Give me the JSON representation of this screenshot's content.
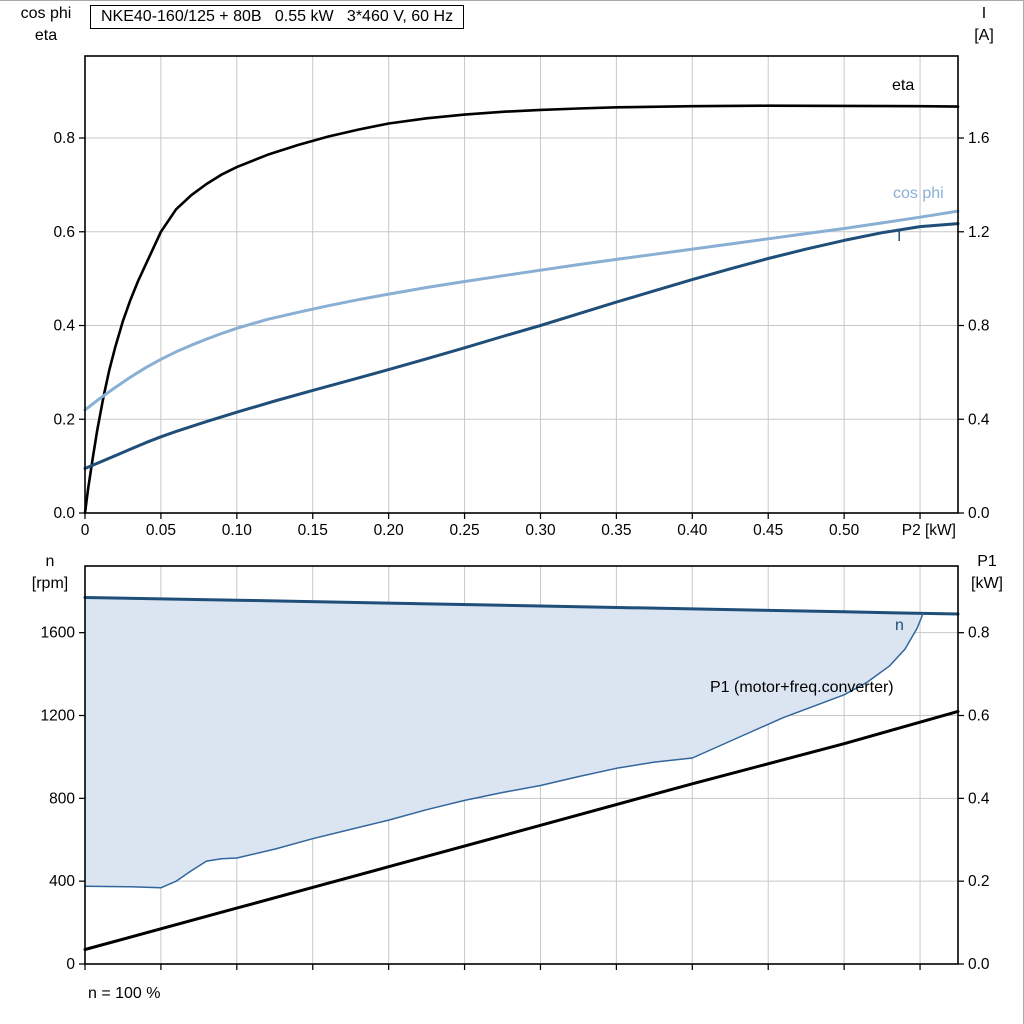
{
  "chart_data": [
    {
      "id": "upper",
      "type": "line",
      "title": "NKE40-160/125 + 80B   0.55 kW   3*460 V, 60 Hz",
      "xlabel": "P2 [kW]",
      "ylabel_left": [
        "cos phi",
        "eta"
      ],
      "ylabel_right": [
        "I",
        "[A]"
      ],
      "xlim": [
        0,
        0.575
      ],
      "ylim_left": [
        0,
        0.975
      ],
      "ylim_right": [
        0,
        1.95
      ],
      "grid_on": true,
      "grid_color": "#c8c8c8",
      "show_x_tick_labels": true,
      "xticks": [
        {
          "v": 0,
          "label": "0"
        },
        {
          "v": 0.05,
          "label": "0.05"
        },
        {
          "v": 0.1,
          "label": "0.10"
        },
        {
          "v": 0.15,
          "label": "0.15"
        },
        {
          "v": 0.2,
          "label": "0.20"
        },
        {
          "v": 0.25,
          "label": "0.25"
        },
        {
          "v": 0.3,
          "label": "0.30"
        },
        {
          "v": 0.35,
          "label": "0.35"
        },
        {
          "v": 0.4,
          "label": "0.40"
        },
        {
          "v": 0.45,
          "label": "0.45"
        },
        {
          "v": 0.5,
          "label": "0.50"
        },
        {
          "v": 0.55,
          "label": ""
        }
      ],
      "yticks_left": [
        {
          "v": 0,
          "label": "0.0"
        },
        {
          "v": 0.2,
          "label": "0.2"
        },
        {
          "v": 0.4,
          "label": "0.4"
        },
        {
          "v": 0.6,
          "label": "0.6"
        },
        {
          "v": 0.8,
          "label": "0.8"
        }
      ],
      "yticks_right": [
        {
          "v": 0,
          "label": "0.0"
        },
        {
          "v": 0.4,
          "label": "0.4"
        },
        {
          "v": 0.8,
          "label": "0.8"
        },
        {
          "v": 1.2,
          "label": "1.2"
        },
        {
          "v": 1.6,
          "label": "1.6"
        }
      ],
      "series": [
        {
          "name": "eta",
          "label": "eta",
          "axis": "left",
          "color": "#000000",
          "width": 2.6,
          "points": [
            [
              0,
              0
            ],
            [
              0.002,
              0.05
            ],
            [
              0.005,
              0.115
            ],
            [
              0.008,
              0.175
            ],
            [
              0.012,
              0.245
            ],
            [
              0.016,
              0.305
            ],
            [
              0.02,
              0.355
            ],
            [
              0.025,
              0.41
            ],
            [
              0.03,
              0.455
            ],
            [
              0.035,
              0.495
            ],
            [
              0.04,
              0.53
            ],
            [
              0.045,
              0.565
            ],
            [
              0.05,
              0.6
            ],
            [
              0.06,
              0.648
            ],
            [
              0.07,
              0.678
            ],
            [
              0.08,
              0.702
            ],
            [
              0.09,
              0.722
            ],
            [
              0.1,
              0.738
            ],
            [
              0.12,
              0.764
            ],
            [
              0.14,
              0.785
            ],
            [
              0.16,
              0.803
            ],
            [
              0.18,
              0.818
            ],
            [
              0.2,
              0.831
            ],
            [
              0.225,
              0.842
            ],
            [
              0.25,
              0.85
            ],
            [
              0.275,
              0.856
            ],
            [
              0.3,
              0.86
            ],
            [
              0.325,
              0.863
            ],
            [
              0.35,
              0.8655
            ],
            [
              0.4,
              0.868
            ],
            [
              0.45,
              0.869
            ],
            [
              0.5,
              0.8685
            ],
            [
              0.55,
              0.868
            ],
            [
              0.575,
              0.867
            ]
          ]
        },
        {
          "name": "cosphi",
          "label": "cos phi",
          "axis": "left",
          "color": "#8aafd4",
          "width": 3,
          "points": [
            [
              0,
              0.22
            ],
            [
              0.01,
              0.245
            ],
            [
              0.02,
              0.268
            ],
            [
              0.03,
              0.29
            ],
            [
              0.04,
              0.31
            ],
            [
              0.05,
              0.328
            ],
            [
              0.06,
              0.344
            ],
            [
              0.07,
              0.358
            ],
            [
              0.08,
              0.371
            ],
            [
              0.09,
              0.383
            ],
            [
              0.1,
              0.394
            ],
            [
              0.12,
              0.413
            ],
            [
              0.14,
              0.428
            ],
            [
              0.16,
              0.442
            ],
            [
              0.18,
              0.455
            ],
            [
              0.2,
              0.467
            ],
            [
              0.225,
              0.481
            ],
            [
              0.25,
              0.494
            ],
            [
              0.275,
              0.506
            ],
            [
              0.3,
              0.518
            ],
            [
              0.325,
              0.53
            ],
            [
              0.35,
              0.541
            ],
            [
              0.375,
              0.552
            ],
            [
              0.4,
              0.563
            ],
            [
              0.425,
              0.574
            ],
            [
              0.45,
              0.585
            ],
            [
              0.475,
              0.596
            ],
            [
              0.5,
              0.607
            ],
            [
              0.525,
              0.619
            ],
            [
              0.55,
              0.631
            ],
            [
              0.575,
              0.644
            ]
          ]
        },
        {
          "name": "I",
          "label": "I",
          "axis": "right",
          "color": "#1f4e79",
          "width": 3,
          "points": [
            [
              0,
              0.19
            ],
            [
              0.02,
              0.245
            ],
            [
              0.04,
              0.3
            ],
            [
              0.05,
              0.325
            ],
            [
              0.06,
              0.348
            ],
            [
              0.08,
              0.39
            ],
            [
              0.1,
              0.43
            ],
            [
              0.125,
              0.478
            ],
            [
              0.15,
              0.523
            ],
            [
              0.175,
              0.567
            ],
            [
              0.2,
              0.612
            ],
            [
              0.225,
              0.658
            ],
            [
              0.25,
              0.705
            ],
            [
              0.275,
              0.753
            ],
            [
              0.3,
              0.8
            ],
            [
              0.325,
              0.85
            ],
            [
              0.35,
              0.9
            ],
            [
              0.375,
              0.948
            ],
            [
              0.4,
              0.996
            ],
            [
              0.425,
              1.042
            ],
            [
              0.45,
              1.086
            ],
            [
              0.475,
              1.126
            ],
            [
              0.5,
              1.163
            ],
            [
              0.525,
              1.196
            ],
            [
              0.55,
              1.222
            ],
            [
              0.575,
              1.235
            ]
          ]
        }
      ]
    },
    {
      "id": "lower",
      "type": "line",
      "xlabel": "",
      "ylabel_left": [
        "n",
        "[rpm]"
      ],
      "ylabel_right": [
        "P1",
        "[kW]"
      ],
      "footer": "n = 100 %",
      "xlim": [
        0,
        0.575
      ],
      "ylim_left": [
        0,
        1922
      ],
      "ylim_right": [
        0,
        0.961
      ],
      "grid_on": true,
      "grid_color": "#c8c8c8",
      "show_x_tick_labels": false,
      "xticks": [
        {
          "v": 0,
          "label": ""
        },
        {
          "v": 0.05,
          "label": ""
        },
        {
          "v": 0.1,
          "label": ""
        },
        {
          "v": 0.15,
          "label": ""
        },
        {
          "v": 0.2,
          "label": ""
        },
        {
          "v": 0.25,
          "label": ""
        },
        {
          "v": 0.3,
          "label": ""
        },
        {
          "v": 0.35,
          "label": ""
        },
        {
          "v": 0.4,
          "label": ""
        },
        {
          "v": 0.45,
          "label": ""
        },
        {
          "v": 0.5,
          "label": ""
        },
        {
          "v": 0.55,
          "label": ""
        }
      ],
      "yticks_left": [
        {
          "v": 0,
          "label": "0"
        },
        {
          "v": 400,
          "label": "400"
        },
        {
          "v": 800,
          "label": "800"
        },
        {
          "v": 1200,
          "label": "1200"
        },
        {
          "v": 1600,
          "label": "1600"
        }
      ],
      "yticks_right": [
        {
          "v": 0,
          "label": "0.0"
        },
        {
          "v": 0.2,
          "label": "0.2"
        },
        {
          "v": 0.4,
          "label": "0.4"
        },
        {
          "v": 0.6,
          "label": "0.6"
        },
        {
          "v": 0.8,
          "label": "0.8"
        }
      ],
      "band": {
        "upper": "n",
        "lower": "n_min",
        "xmax": 0.552,
        "fill": "#dbe5f1"
      },
      "series": [
        {
          "name": "n",
          "label": "n",
          "axis": "left",
          "color": "#1f4e79",
          "width": 3,
          "points": [
            [
              0,
              1770
            ],
            [
              0.1,
              1757
            ],
            [
              0.2,
              1743
            ],
            [
              0.3,
              1729
            ],
            [
              0.4,
              1715
            ],
            [
              0.5,
              1701
            ],
            [
              0.552,
              1693
            ],
            [
              0.575,
              1690
            ]
          ]
        },
        {
          "name": "n_min",
          "label": "",
          "axis": "left",
          "color": "#31659c",
          "width": 1.5,
          "points": [
            [
              0,
              375
            ],
            [
              0.03,
              373
            ],
            [
              0.05,
              368
            ],
            [
              0.06,
              400
            ],
            [
              0.07,
              450
            ],
            [
              0.08,
              497
            ],
            [
              0.09,
              508
            ],
            [
              0.1,
              512
            ],
            [
              0.125,
              555
            ],
            [
              0.15,
              605
            ],
            [
              0.175,
              650
            ],
            [
              0.2,
              695
            ],
            [
              0.225,
              745
            ],
            [
              0.25,
              790
            ],
            [
              0.275,
              828
            ],
            [
              0.3,
              862
            ],
            [
              0.325,
              905
            ],
            [
              0.35,
              945
            ],
            [
              0.375,
              975
            ],
            [
              0.4,
              995
            ],
            [
              0.42,
              1060
            ],
            [
              0.44,
              1125
            ],
            [
              0.46,
              1190
            ],
            [
              0.48,
              1245
            ],
            [
              0.5,
              1300
            ],
            [
              0.515,
              1360
            ],
            [
              0.53,
              1440
            ],
            [
              0.54,
              1520
            ],
            [
              0.548,
              1620
            ],
            [
              0.552,
              1693
            ]
          ]
        },
        {
          "name": "P1",
          "label": "P1 (motor+freq.converter)",
          "axis": "right",
          "color": "#000000",
          "width": 3,
          "points": [
            [
              0,
              0.035
            ],
            [
              0.1,
              0.135
            ],
            [
              0.2,
              0.235
            ],
            [
              0.3,
              0.335
            ],
            [
              0.4,
              0.435
            ],
            [
              0.5,
              0.532
            ],
            [
              0.575,
              0.61
            ]
          ]
        }
      ]
    }
  ]
}
